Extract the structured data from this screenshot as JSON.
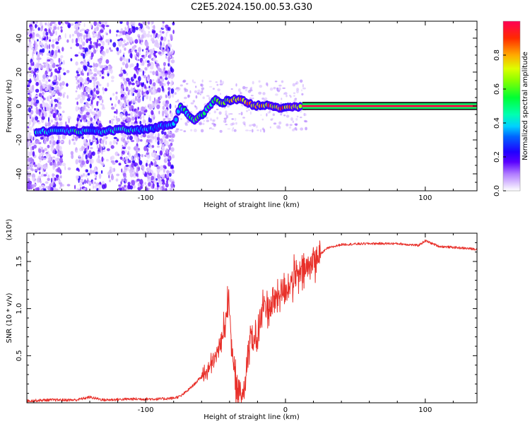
{
  "title": "C2E5.2024.150.00.53.G30",
  "colors": {
    "snr_line": "#e8302a",
    "axes": "#000000",
    "colormap": [
      "#ffffff",
      "#e6d6ff",
      "#c9a6ff",
      "#8a3cff",
      "#1a00ff",
      "#00a0ff",
      "#00ffff",
      "#00ff66",
      "#33ff00",
      "#ccff00",
      "#ffcc00",
      "#ff6600",
      "#ff0000",
      "#ff0066"
    ]
  },
  "chart_data": [
    {
      "type": "heatmap",
      "title": "C2E5.2024.150.00.53.G30",
      "xlabel": "Height of straight line (km)",
      "ylabel": "Frequency (Hz)",
      "xlim": [
        -185,
        137
      ],
      "ylim": [
        -50,
        50
      ],
      "xticks": [
        -100,
        0,
        100
      ],
      "yticks": [
        -40,
        -20,
        0,
        20,
        40
      ],
      "colorbar": {
        "label": "Normalized spectral amplitude",
        "range": [
          0,
          1
        ],
        "ticks": [
          "0.0",
          "0.2",
          "0.4",
          "0.6",
          "0.8"
        ],
        "tick_values": [
          0.0,
          0.2,
          0.4,
          0.6,
          0.8
        ]
      },
      "signal_track": [
        {
          "x": -178,
          "y": -15,
          "amp": 0.45
        },
        {
          "x": -170,
          "y": -15,
          "amp": 0.45
        },
        {
          "x": -160,
          "y": -15,
          "amp": 0.4
        },
        {
          "x": -150,
          "y": -15,
          "amp": 0.5
        },
        {
          "x": -140,
          "y": -15,
          "amp": 0.4
        },
        {
          "x": -130,
          "y": -15,
          "amp": 0.4
        },
        {
          "x": -120,
          "y": -14,
          "amp": 0.45
        },
        {
          "x": -110,
          "y": -14,
          "amp": 0.45
        },
        {
          "x": -100,
          "y": -14,
          "amp": 0.4
        },
        {
          "x": -90,
          "y": -12,
          "amp": 0.35
        },
        {
          "x": -80,
          "y": -11,
          "amp": 0.45
        },
        {
          "x": -75,
          "y": 0,
          "amp": 0.5
        },
        {
          "x": -65,
          "y": -9,
          "amp": 0.55
        },
        {
          "x": -58,
          "y": -4,
          "amp": 0.55
        },
        {
          "x": -50,
          "y": 4,
          "amp": 0.6
        },
        {
          "x": -45,
          "y": 2,
          "amp": 0.7
        },
        {
          "x": -38,
          "y": 4,
          "amp": 0.75
        },
        {
          "x": -30,
          "y": 3,
          "amp": 0.85
        },
        {
          "x": -25,
          "y": 1,
          "amp": 0.9
        },
        {
          "x": -18,
          "y": 0,
          "amp": 0.8
        },
        {
          "x": -10,
          "y": 0,
          "amp": 0.85
        },
        {
          "x": -3,
          "y": -1,
          "amp": 0.85
        },
        {
          "x": 5,
          "y": -1,
          "amp": 0.8
        },
        {
          "x": 12,
          "y": 0,
          "amp": 0.9
        },
        {
          "x": 137,
          "y": 0,
          "amp": 1.0
        }
      ]
    },
    {
      "type": "line",
      "xlabel": "Height of straight line (km)",
      "ylabel": "SNR (10 * v/v)",
      "y_multiplier": "(x10⁴)",
      "xlim": [
        -185,
        137
      ],
      "ylim": [
        0,
        1.8
      ],
      "xticks": [
        -100,
        0,
        100
      ],
      "yticks": [
        0.5,
        1.0,
        1.5
      ],
      "ytick_labels": [
        "0.5",
        "1.0",
        "1.5"
      ],
      "series": [
        {
          "x": [
            -185,
            -170,
            -150,
            -140,
            -130,
            -110,
            -90,
            -80,
            -75,
            -70,
            -65,
            -60,
            -55,
            -50,
            -45,
            -42,
            -40,
            -38,
            -35,
            -32,
            -30,
            -27,
            -25,
            -22,
            -20,
            -17,
            -15,
            -12,
            -10,
            -5,
            0,
            5,
            10,
            15,
            20,
            25,
            30,
            40,
            60,
            80,
            95,
            100,
            110,
            120,
            137
          ],
          "y": [
            0.02,
            0.03,
            0.03,
            0.06,
            0.03,
            0.04,
            0.04,
            0.05,
            0.07,
            0.13,
            0.2,
            0.28,
            0.35,
            0.48,
            0.7,
            1.0,
            1.1,
            0.45,
            0.15,
            0.05,
            0.15,
            0.5,
            0.75,
            0.6,
            0.7,
            0.95,
            1.05,
            1.0,
            1.05,
            1.15,
            1.2,
            1.3,
            1.35,
            1.42,
            1.5,
            1.58,
            1.64,
            1.68,
            1.69,
            1.69,
            1.67,
            1.72,
            1.66,
            1.65,
            1.63
          ]
        }
      ]
    }
  ]
}
